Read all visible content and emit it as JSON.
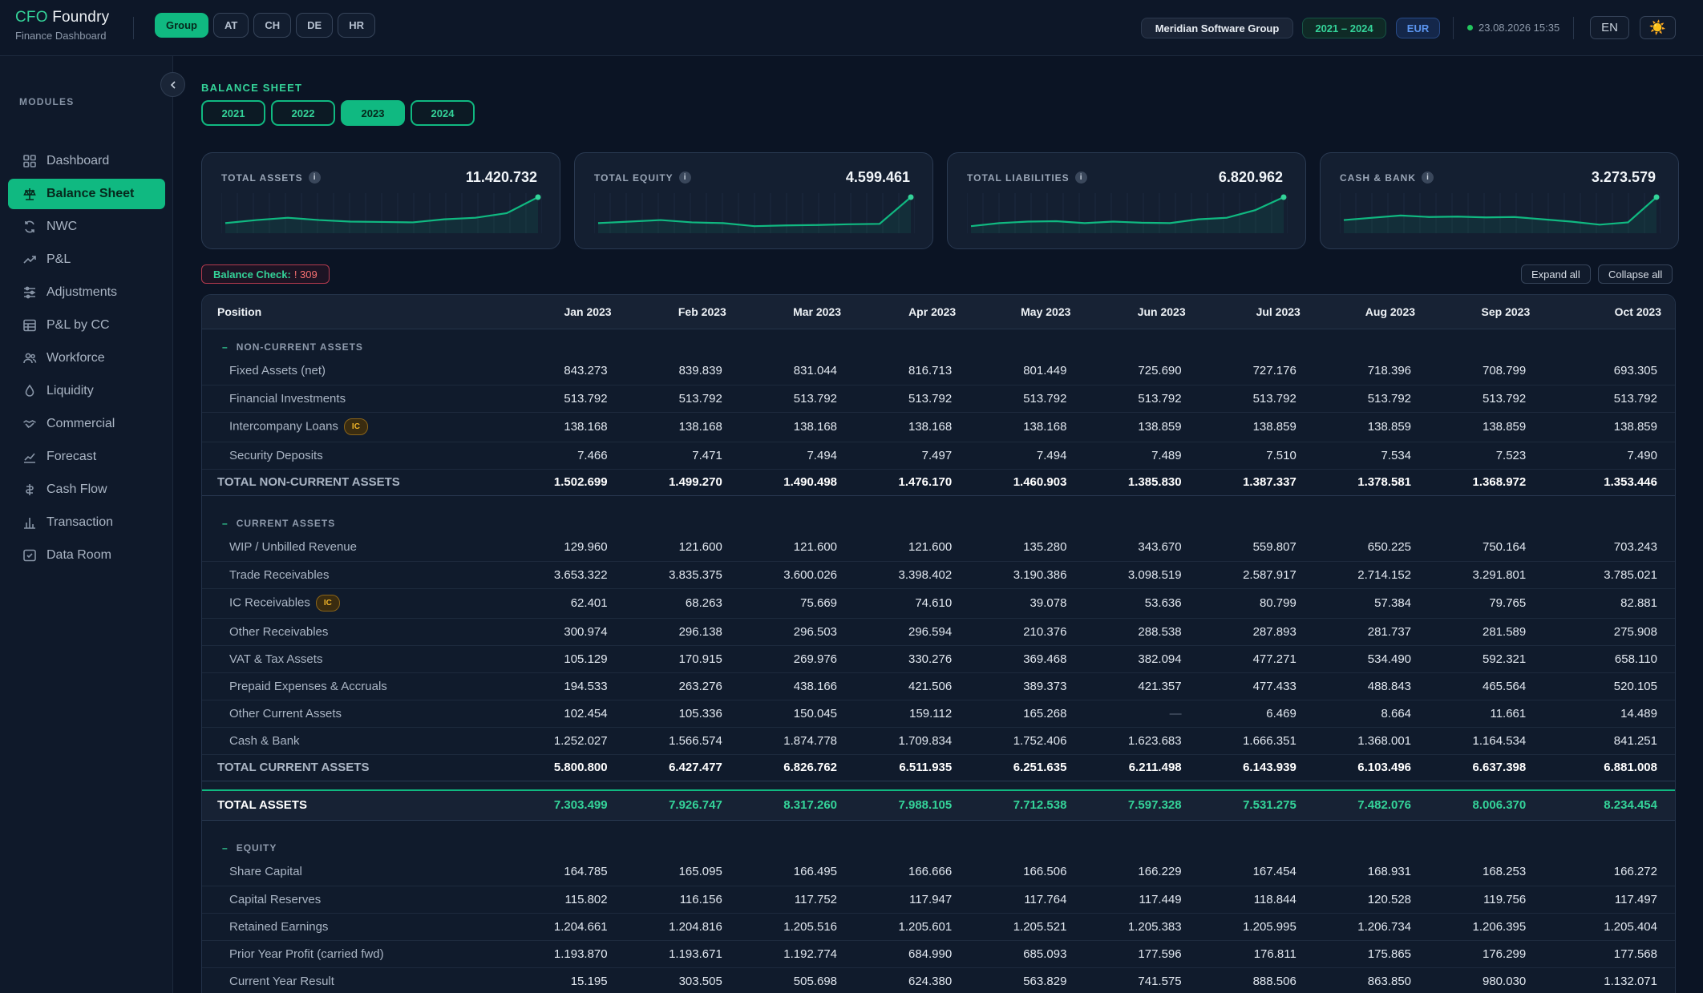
{
  "app": {
    "brand_prefix": "CFO",
    "brand_suffix": "Foundry",
    "subtitle": "Finance Dashboard"
  },
  "entities": [
    "Group",
    "AT",
    "CH",
    "DE",
    "HR"
  ],
  "active_entity": "Group",
  "header": {
    "company": "Meridian Software Group",
    "range": "2021 – 2024",
    "currency": "EUR",
    "timestamp": "23.08.2026 15:35",
    "lang": "EN",
    "theme_icon": "☀️"
  },
  "sidebar": {
    "modules_label": "MODULES",
    "items": [
      {
        "label": "Dashboard",
        "icon": "grid-icon"
      },
      {
        "label": "Balance Sheet",
        "icon": "scale-icon",
        "active": true
      },
      {
        "label": "NWC",
        "icon": "refresh-icon"
      },
      {
        "label": "P&L",
        "icon": "trend-up-icon"
      },
      {
        "label": "Adjustments",
        "icon": "sliders-icon"
      },
      {
        "label": "P&L by CC",
        "icon": "table-icon"
      },
      {
        "label": "Workforce",
        "icon": "users-icon"
      },
      {
        "label": "Liquidity",
        "icon": "droplet-icon"
      },
      {
        "label": "Commercial",
        "icon": "handshake-icon"
      },
      {
        "label": "Forecast",
        "icon": "forecast-icon"
      },
      {
        "label": "Cash Flow",
        "icon": "flow-icon"
      },
      {
        "label": "Transaction",
        "icon": "bar-icon"
      },
      {
        "label": "Data Room",
        "icon": "folder-check-icon"
      }
    ]
  },
  "main": {
    "section_title": "BALANCE SHEET",
    "years": [
      "2021",
      "2022",
      "2023",
      "2024"
    ],
    "active_year": "2023",
    "kpis": [
      {
        "label": "TOTAL ASSETS",
        "value": "11.420.732",
        "trend": [
          8,
          12,
          15,
          12,
          10,
          9.5,
          9,
          13,
          15,
          21,
          42
        ]
      },
      {
        "label": "TOTAL EQUITY",
        "value": "4.599.461",
        "trend": [
          8,
          10,
          12,
          9,
          8,
          4,
          5,
          5.5,
          6.5,
          7,
          42
        ]
      },
      {
        "label": "TOTAL LIABILITIES",
        "value": "6.820.962",
        "trend": [
          4,
          8,
          10,
          10.5,
          8,
          10,
          8.5,
          8,
          13,
          15,
          25,
          42
        ]
      },
      {
        "label": "CASH & BANK",
        "value": "3.273.579",
        "trend": [
          12,
          15,
          18,
          16,
          16.5,
          15.5,
          16,
          13,
          10,
          6,
          9,
          42
        ]
      }
    ],
    "balance_check_label": "Balance Check:",
    "balance_check_value": "! 309",
    "expand_all": "Expand all",
    "collapse_all": "Collapse all"
  },
  "table": {
    "position_header": "Position",
    "months": [
      "Jan 2023",
      "Feb 2023",
      "Mar 2023",
      "Apr 2023",
      "May 2023",
      "Jun 2023",
      "Jul 2023",
      "Aug 2023",
      "Sep 2023",
      "Oct 2023"
    ],
    "non_current": {
      "title": "NON-CURRENT ASSETS",
      "rows": [
        {
          "name": "Fixed Assets (net)",
          "values": [
            "843.273",
            "839.839",
            "831.044",
            "816.713",
            "801.449",
            "725.690",
            "727.176",
            "718.396",
            "708.799",
            "693.305"
          ]
        },
        {
          "name": "Financial Investments",
          "values": [
            "513.792",
            "513.792",
            "513.792",
            "513.792",
            "513.792",
            "513.792",
            "513.792",
            "513.792",
            "513.792",
            "513.792"
          ]
        },
        {
          "name": "Intercompany Loans",
          "badge": "IC",
          "values": [
            "138.168",
            "138.168",
            "138.168",
            "138.168",
            "138.168",
            "138.859",
            "138.859",
            "138.859",
            "138.859",
            "138.859"
          ]
        },
        {
          "name": "Security Deposits",
          "values": [
            "7.466",
            "7.471",
            "7.494",
            "7.497",
            "7.494",
            "7.489",
            "7.510",
            "7.534",
            "7.523",
            "7.490"
          ]
        }
      ],
      "total_label": "TOTAL NON-CURRENT ASSETS",
      "total": [
        "1.502.699",
        "1.499.270",
        "1.490.498",
        "1.476.170",
        "1.460.903",
        "1.385.830",
        "1.387.337",
        "1.378.581",
        "1.368.972",
        "1.353.446"
      ]
    },
    "current": {
      "title": "CURRENT ASSETS",
      "rows": [
        {
          "name": "WIP / Unbilled Revenue",
          "values": [
            "129.960",
            "121.600",
            "121.600",
            "121.600",
            "135.280",
            "343.670",
            "559.807",
            "650.225",
            "750.164",
            "703.243"
          ]
        },
        {
          "name": "Trade Receivables",
          "values": [
            "3.653.322",
            "3.835.375",
            "3.600.026",
            "3.398.402",
            "3.190.386",
            "3.098.519",
            "2.587.917",
            "2.714.152",
            "3.291.801",
            "3.785.021"
          ]
        },
        {
          "name": "IC Receivables",
          "badge": "IC",
          "values": [
            "62.401",
            "68.263",
            "75.669",
            "74.610",
            "39.078",
            "53.636",
            "80.799",
            "57.384",
            "79.765",
            "82.881"
          ]
        },
        {
          "name": "Other Receivables",
          "values": [
            "300.974",
            "296.138",
            "296.503",
            "296.594",
            "210.376",
            "288.538",
            "287.893",
            "281.737",
            "281.589",
            "275.908"
          ]
        },
        {
          "name": "VAT & Tax Assets",
          "values": [
            "105.129",
            "170.915",
            "269.976",
            "330.276",
            "369.468",
            "382.094",
            "477.271",
            "534.490",
            "592.321",
            "658.110"
          ]
        },
        {
          "name": "Prepaid Expenses & Accruals",
          "values": [
            "194.533",
            "263.276",
            "438.166",
            "421.506",
            "389.373",
            "421.357",
            "477.433",
            "488.843",
            "465.564",
            "520.105"
          ]
        },
        {
          "name": "Other Current Assets",
          "values": [
            "102.454",
            "105.336",
            "150.045",
            "159.112",
            "165.268",
            "—",
            "6.469",
            "8.664",
            "11.661",
            "14.489"
          ]
        },
        {
          "name": "Cash & Bank",
          "values": [
            "1.252.027",
            "1.566.574",
            "1.874.778",
            "1.709.834",
            "1.752.406",
            "1.623.683",
            "1.666.351",
            "1.368.001",
            "1.164.534",
            "841.251"
          ]
        }
      ],
      "total_label": "TOTAL CURRENT ASSETS",
      "total": [
        "5.800.800",
        "6.427.477",
        "6.826.762",
        "6.511.935",
        "6.251.635",
        "6.211.498",
        "6.143.939",
        "6.103.496",
        "6.637.398",
        "6.881.008"
      ]
    },
    "total_assets_label": "TOTAL ASSETS",
    "total_assets": [
      "7.303.499",
      "7.926.747",
      "8.317.260",
      "7.988.105",
      "7.712.538",
      "7.597.328",
      "7.531.275",
      "7.482.076",
      "8.006.370",
      "8.234.454"
    ],
    "equity": {
      "title": "EQUITY",
      "rows": [
        {
          "name": "Share Capital",
          "values": [
            "164.785",
            "165.095",
            "166.495",
            "166.666",
            "166.506",
            "166.229",
            "167.454",
            "168.931",
            "168.253",
            "166.272"
          ]
        },
        {
          "name": "Capital Reserves",
          "values": [
            "115.802",
            "116.156",
            "117.752",
            "117.947",
            "117.764",
            "117.449",
            "118.844",
            "120.528",
            "119.756",
            "117.497"
          ]
        },
        {
          "name": "Retained Earnings",
          "values": [
            "1.204.661",
            "1.204.816",
            "1.205.516",
            "1.205.601",
            "1.205.521",
            "1.205.383",
            "1.205.995",
            "1.206.734",
            "1.206.395",
            "1.205.404"
          ]
        },
        {
          "name": "Prior Year Profit (carried fwd)",
          "values": [
            "1.193.870",
            "1.193.671",
            "1.192.774",
            "684.990",
            "685.093",
            "177.596",
            "176.811",
            "175.865",
            "176.299",
            "177.568"
          ]
        },
        {
          "name": "Current Year Result",
          "values": [
            "15.195",
            "303.505",
            "505.698",
            "624.380",
            "563.829",
            "741.575",
            "888.506",
            "863.850",
            "980.030",
            "1.132.071"
          ]
        }
      ]
    }
  },
  "colors": {
    "accent": "#10b981",
    "accent_text": "#34d399",
    "background": "#0b1424",
    "warning": "#f87171",
    "ic_badge": "#f0b429"
  }
}
